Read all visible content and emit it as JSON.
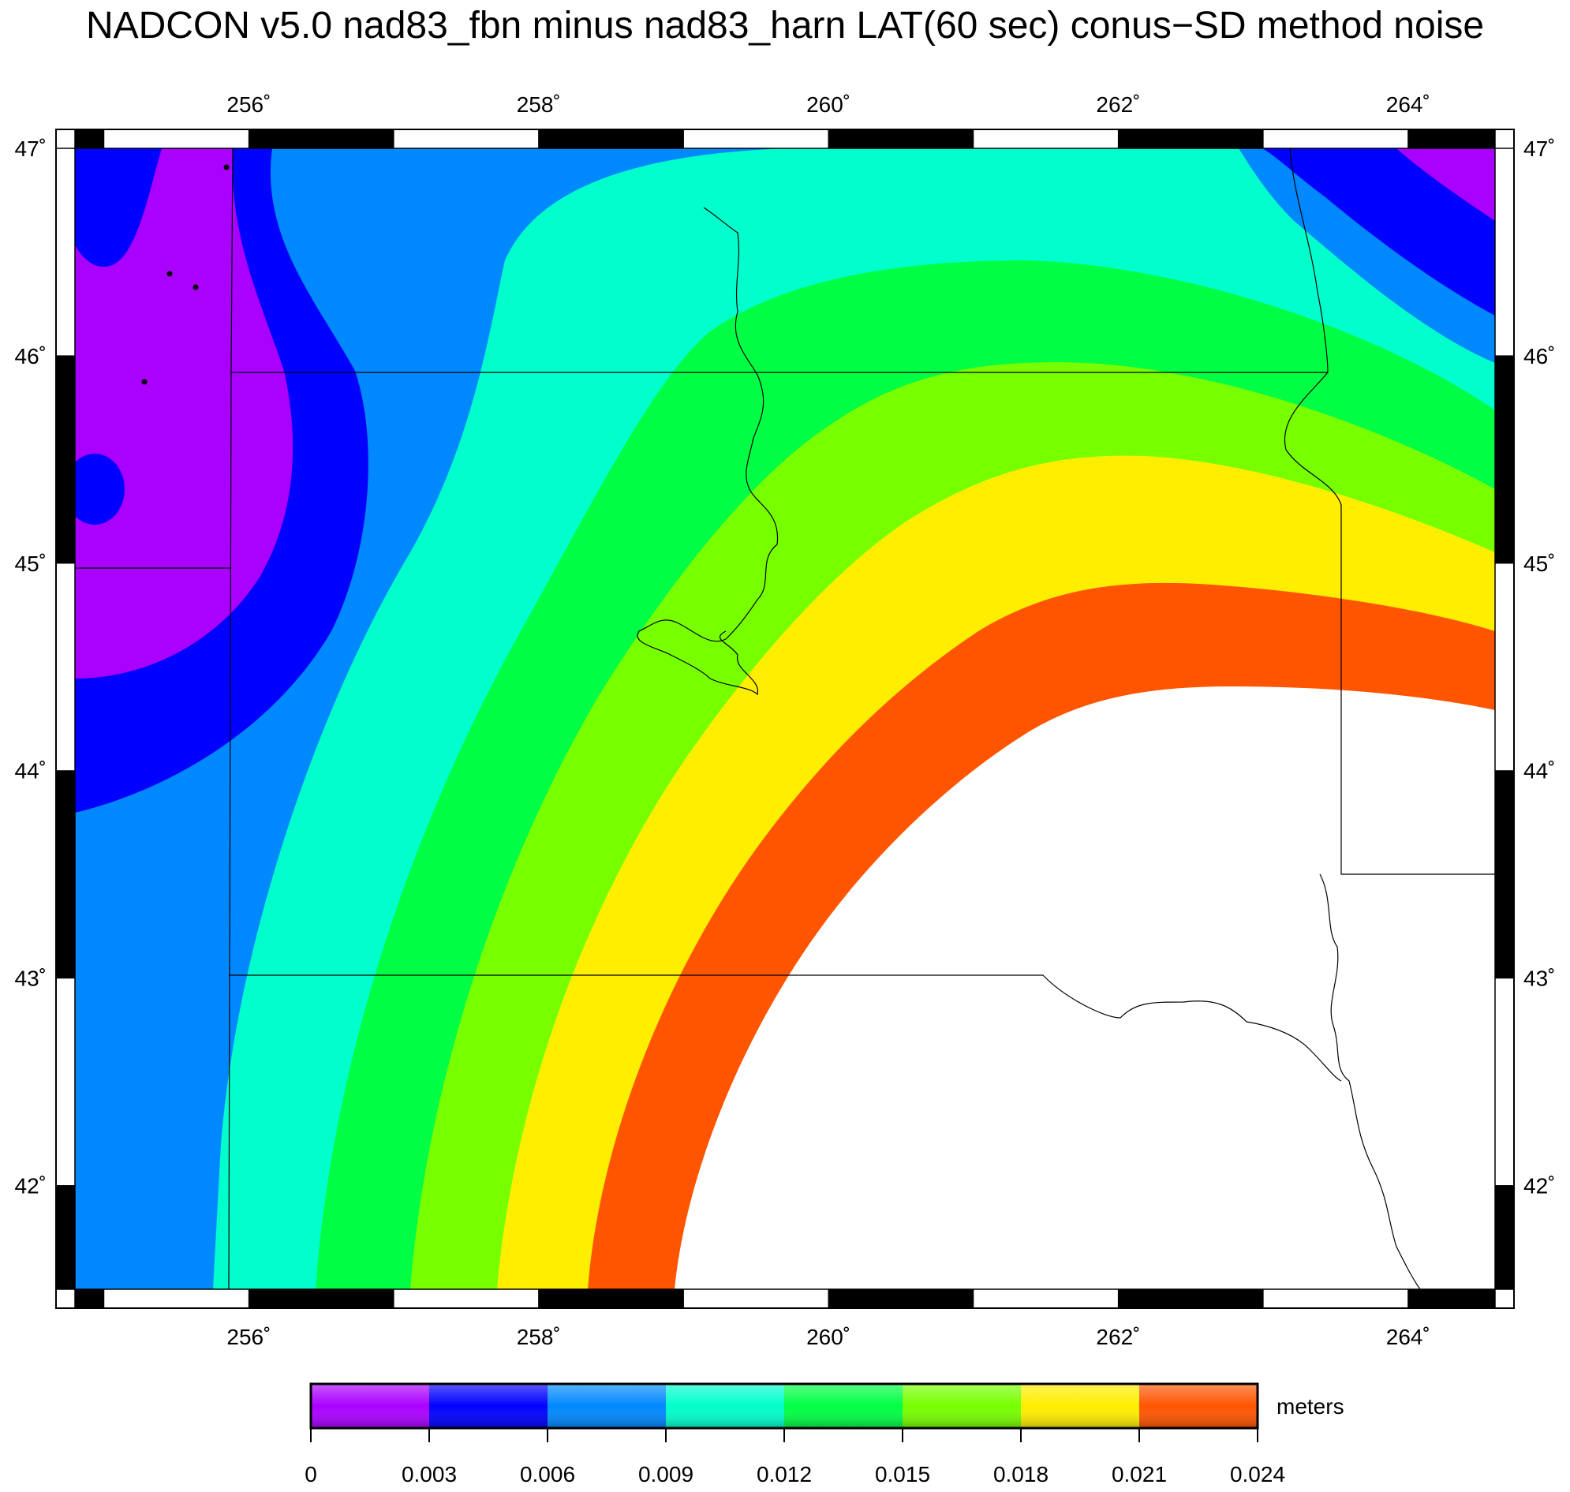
{
  "title": "NADCON v5.0 nad83_fbn minus nad83_harn LAT(60 sec) conus−SD method noise",
  "map": {
    "lon_range": [
      254.8,
      264.6
    ],
    "lat_range": [
      41.5,
      47.0
    ],
    "lon_ticks": [
      {
        "value": 256,
        "label": "256˚"
      },
      {
        "value": 258,
        "label": "258˚"
      },
      {
        "value": 260,
        "label": "260˚"
      },
      {
        "value": 262,
        "label": "262˚"
      },
      {
        "value": 264,
        "label": "264˚"
      }
    ],
    "lat_ticks": [
      {
        "value": 47,
        "label": "47˚"
      },
      {
        "value": 46,
        "label": "46˚"
      },
      {
        "value": 45,
        "label": "45˚"
      },
      {
        "value": 44,
        "label": "44˚"
      },
      {
        "value": 43,
        "label": "43˚"
      },
      {
        "value": 42,
        "label": "42˚"
      }
    ],
    "frame_style": "alternating black/white bars, 1 degree segments"
  },
  "chart_data": {
    "type": "heatmap",
    "title": "NADCON v5.0 nad83_fbn minus nad83_harn LAT(60 sec) conus−SD method noise",
    "x_range": [
      254.8,
      264.6
    ],
    "y_range": [
      41.5,
      47.0
    ],
    "colorbar": {
      "unit": "meters",
      "bounds": [
        0,
        0.003,
        0.006,
        0.009,
        0.012,
        0.015,
        0.018,
        0.021,
        0.024
      ],
      "tick_labels": [
        "0",
        "0.003",
        "0.006",
        "0.009",
        "0.012",
        "0.015",
        "0.018",
        "0.021",
        "0.024"
      ],
      "colors": [
        "#aa00ff",
        "#0000ff",
        "#0088ff",
        "#00ffcc",
        "#00ff44",
        "#77ff00",
        "#ffee00",
        "#ff5500"
      ],
      "above_max_color": "#ffffff"
    },
    "pattern": "concentric bands of increasing noise centered near lon 262.5, lat 42.5; values exceed 0.024 m (white) in the southeast; minimum (<0.003 m) in the northwest near lon 255-256, lat 45-47"
  }
}
